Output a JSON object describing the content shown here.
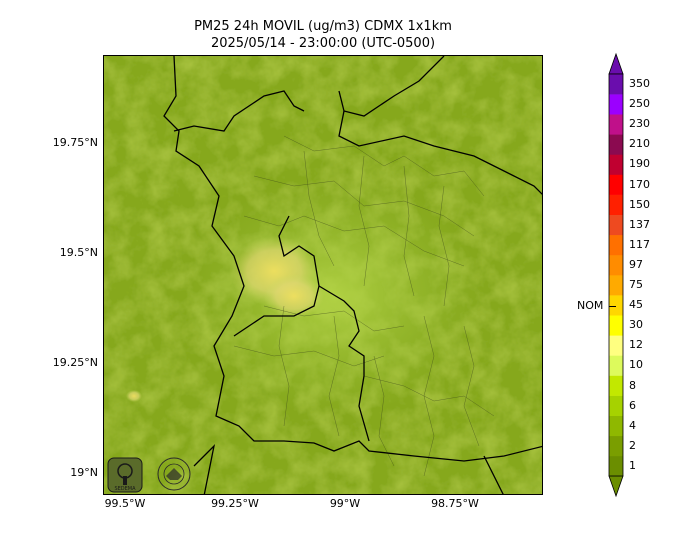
{
  "title_line1": "PM25 24h MOVIL (ug/m3) CDMX 1x1km",
  "title_line2": "2025/05/14 - 23:00:00 (UTC-0500)",
  "map": {
    "x_ticks": [
      {
        "lon": -99.5,
        "label": "99.5°W"
      },
      {
        "lon": -99.25,
        "label": "99.25°W"
      },
      {
        "lon": -99.0,
        "label": "99°W"
      },
      {
        "lon": -98.75,
        "label": "98.75°W"
      }
    ],
    "y_ticks": [
      {
        "lat": 19.75,
        "label": "19.75°N"
      },
      {
        "lat": 19.5,
        "label": "19.5°N"
      },
      {
        "lat": 19.25,
        "label": "19.25°N"
      },
      {
        "lat": 19.0,
        "label": "19°N"
      }
    ],
    "lon_range": [
      -99.55,
      -98.55
    ],
    "lat_range": [
      18.95,
      19.95
    ],
    "logo_left": "sedema-logo",
    "logo_right": "cdmx-seal"
  },
  "colorbar": {
    "nom_label": "NOM",
    "nom_value": "45",
    "levels": [
      {
        "label": "1",
        "color": "#6b8e00"
      },
      {
        "label": "2",
        "color": "#7a9e00"
      },
      {
        "label": "4",
        "color": "#8fb800"
      },
      {
        "label": "6",
        "color": "#a6d200"
      },
      {
        "label": "8",
        "color": "#c2e800"
      },
      {
        "label": "10",
        "color": "#ddfa5c"
      },
      {
        "label": "12",
        "color": "#ffff80"
      },
      {
        "label": "30",
        "color": "#ffff00"
      },
      {
        "label": "45",
        "color": "#ffd700"
      },
      {
        "label": "75",
        "color": "#ffaa00"
      },
      {
        "label": "97",
        "color": "#ff8c00"
      },
      {
        "label": "117",
        "color": "#ff7000"
      },
      {
        "label": "137",
        "color": "#ee4a20"
      },
      {
        "label": "150",
        "color": "#ff2000"
      },
      {
        "label": "170",
        "color": "#ff0000"
      },
      {
        "label": "190",
        "color": "#c00030"
      },
      {
        "label": "210",
        "color": "#8b0a50"
      },
      {
        "label": "230",
        "color": "#c0108a"
      },
      {
        "label": "250",
        "color": "#9b00ff"
      },
      {
        "label": "350",
        "color": "#6a0dad"
      }
    ]
  }
}
